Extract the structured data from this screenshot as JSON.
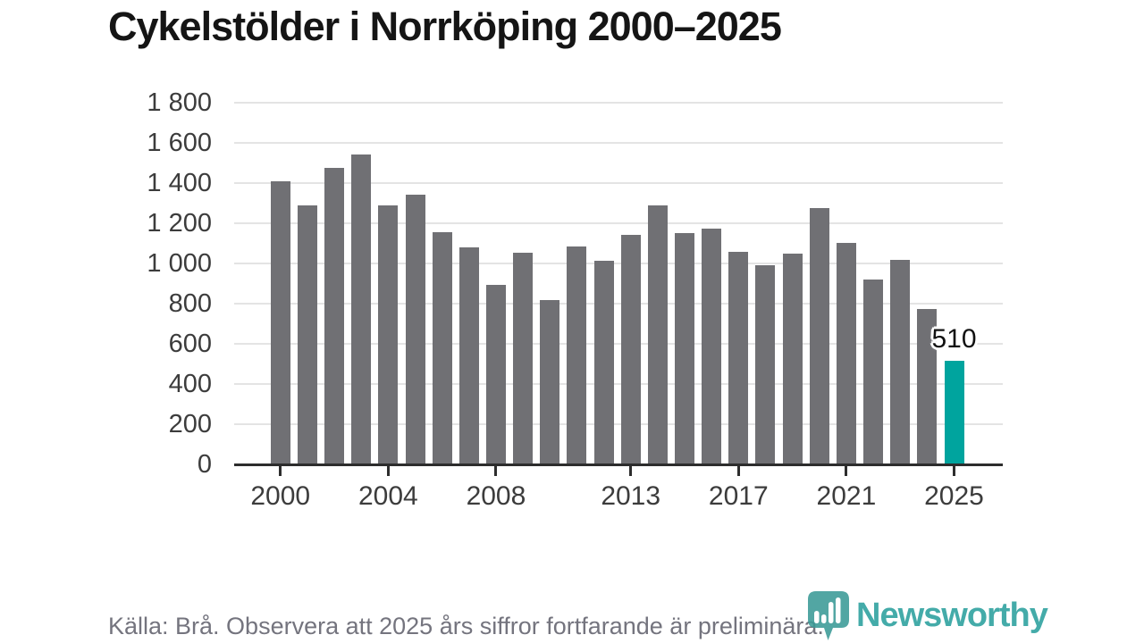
{
  "title": "Cykelstölder i Norrköping 2000–2025",
  "footer": {
    "source_note": "Källa: Brå. Observera att 2025 års siffror fortfarande är preliminära."
  },
  "branding": {
    "logo_text": "Newsworthy",
    "logo_icon": "bar-chart-pin-icon",
    "logo_color": "#2ba09e"
  },
  "chart_data": {
    "type": "bar",
    "title": "Cykelstölder i Norrköping 2000–2025",
    "xlabel": "",
    "ylabel": "",
    "categories": [
      "2000",
      "2001",
      "2002",
      "2003",
      "2004",
      "2005",
      "2006",
      "2007",
      "2008",
      "2009",
      "2010",
      "2011",
      "2012",
      "2013",
      "2014",
      "2015",
      "2016",
      "2017",
      "2018",
      "2019",
      "2020",
      "2021",
      "2022",
      "2023",
      "2024",
      "2025"
    ],
    "values": [
      1405,
      1285,
      1470,
      1540,
      1285,
      1340,
      1150,
      1075,
      890,
      1050,
      815,
      1080,
      1010,
      1140,
      1285,
      1145,
      1170,
      1055,
      985,
      1045,
      1270,
      1100,
      915,
      1015,
      770,
      510
    ],
    "highlight_category": "2025",
    "highlight_value_label": "510",
    "bar_color": "#707074",
    "highlight_color": "#00a49e",
    "ylim": [
      0,
      1800
    ],
    "ytick_step": 200,
    "ytick_labels": [
      "0",
      "200",
      "400",
      "600",
      "800",
      "1 000",
      "1 200",
      "1 400",
      "1 600",
      "1 800"
    ],
    "xtick_labels": [
      "2000",
      "2004",
      "2008",
      "2013",
      "2017",
      "2021",
      "2025"
    ],
    "grid": true,
    "legend": false
  }
}
